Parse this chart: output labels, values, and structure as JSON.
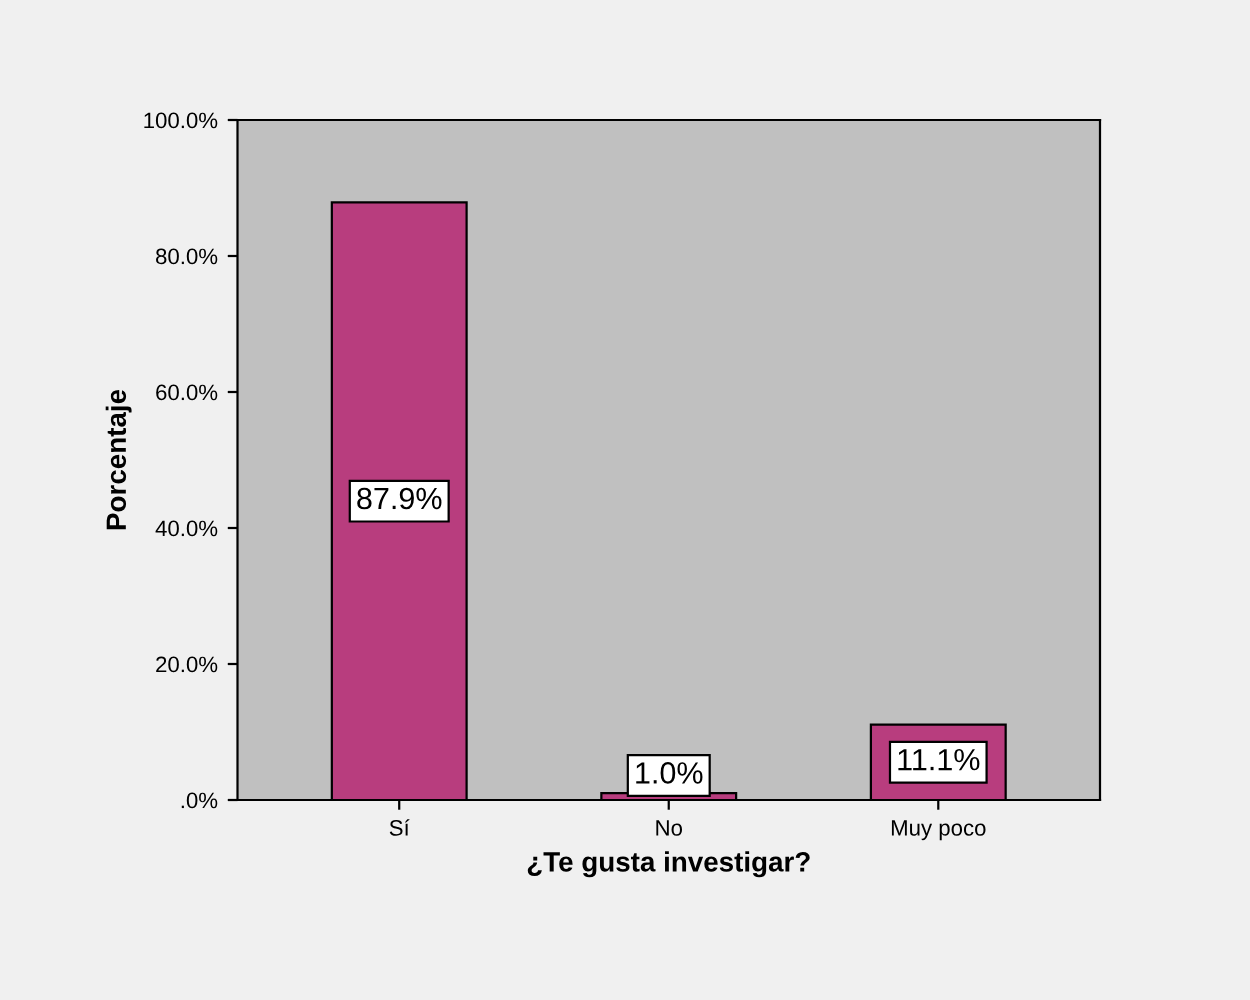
{
  "chart_data": {
    "type": "bar",
    "xlabel": "¿Te gusta investigar?",
    "ylabel": "Porcentaje",
    "categories": [
      "Sí",
      "No",
      "Muy poco"
    ],
    "values": [
      87.9,
      1.0,
      11.1
    ],
    "value_labels": [
      "87.9%",
      "1.0%",
      "11.1%"
    ],
    "color": "#b83d7e",
    "ylim": [
      0,
      100
    ],
    "yticks": [
      {
        "value": 0,
        "label": ".0%"
      },
      {
        "value": 20,
        "label": "20.0%"
      },
      {
        "value": 40,
        "label": "40.0%"
      },
      {
        "value": 60,
        "label": "60.0%"
      },
      {
        "value": 80,
        "label": "80.0%"
      },
      {
        "value": 100,
        "label": "100.0%"
      }
    ],
    "grid": false
  }
}
